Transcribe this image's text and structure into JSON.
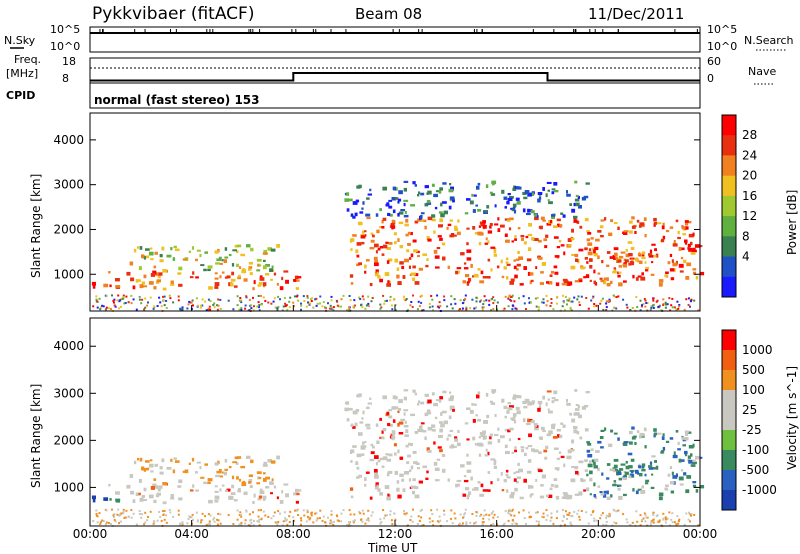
{
  "header": {
    "station": "Pykkvibaer (fitACF)",
    "beam": "Beam 08",
    "date": "11/Dec/2011"
  },
  "labels": {
    "nsky": "N.Sky",
    "nsky_hi": "10^5",
    "nsky_lo": "10^0",
    "nsearch": "N.Search",
    "nsearch_hi": "10^5",
    "nsearch_lo": "10^0",
    "freq": "Freq.",
    "freq_unit": "[MHz]",
    "freq_hi": "18",
    "freq_lo": "8",
    "nave": "Nave",
    "nave_hi": "60",
    "nave_lo": "0",
    "cpid": "CPID",
    "cpid_text": "normal (fast stereo) 153",
    "slant_range": "Slant Range [km]",
    "power_label": "Power [dB]",
    "velocity_label": "Velocity [m s^-1]",
    "time_label": "Time UT"
  },
  "chart_data": [
    {
      "type": "heatmap",
      "name": "power",
      "xlabel": "Time UT",
      "ylabel": "Slant Range [km]",
      "x_ticks": [
        "00:00",
        "04:00",
        "08:00",
        "12:00",
        "16:00",
        "20:00",
        "00:00"
      ],
      "y_ticks": [
        1000,
        2000,
        3000,
        4000
      ],
      "ylim": [
        180,
        4600
      ],
      "colorbar": {
        "label": "Power [dB]",
        "ticks": [
          4,
          8,
          12,
          16,
          20,
          24,
          28
        ],
        "colors": [
          "#1a1aff",
          "#2050c8",
          "#3a8050",
          "#60b040",
          "#a0c830",
          "#f0c020",
          "#f08020",
          "#e83010",
          "#ff0000"
        ]
      },
      "regions": [
        {
          "t0": 0.0,
          "t1": 8.3,
          "r0": 700,
          "r1": 1100,
          "level": "high"
        },
        {
          "t0": 1.5,
          "t1": 7.5,
          "r0": 1100,
          "r1": 1700,
          "level": "mid"
        },
        {
          "t0": 10.2,
          "t1": 24.0,
          "r0": 800,
          "r1": 2300,
          "level": "high"
        },
        {
          "t0": 10.0,
          "t1": 19.5,
          "r0": 2300,
          "r1": 3100,
          "level": "low"
        },
        {
          "t0": 20.5,
          "t1": 22.0,
          "r0": 900,
          "r1": 1500,
          "level": "high"
        }
      ]
    },
    {
      "type": "heatmap",
      "name": "velocity",
      "xlabel": "Time UT",
      "ylabel": "Slant Range [km]",
      "x_ticks": [
        "00:00",
        "04:00",
        "08:00",
        "12:00",
        "16:00",
        "20:00",
        "00:00"
      ],
      "y_ticks": [
        1000,
        2000,
        3000,
        4000
      ],
      "ylim": [
        180,
        4600
      ],
      "colorbar": {
        "label": "Velocity [m s^-1]",
        "ticks": [
          1000,
          500,
          100,
          25,
          -25,
          -100,
          -500,
          -1000
        ],
        "colors": [
          "#1a40b0",
          "#2a60c0",
          "#3a8a60",
          "#70c040",
          "#c8c8c0",
          "#c8c8c0",
          "#f09020",
          "#f06010",
          "#ff0000"
        ]
      }
    }
  ],
  "time_series": {
    "freq_steps": [
      {
        "t0": 0,
        "t1": 8.0,
        "mhz": 9
      },
      {
        "t0": 8.0,
        "t1": 18.0,
        "mhz": 12
      },
      {
        "t0": 18.0,
        "t1": 24.0,
        "mhz": 9
      }
    ]
  }
}
